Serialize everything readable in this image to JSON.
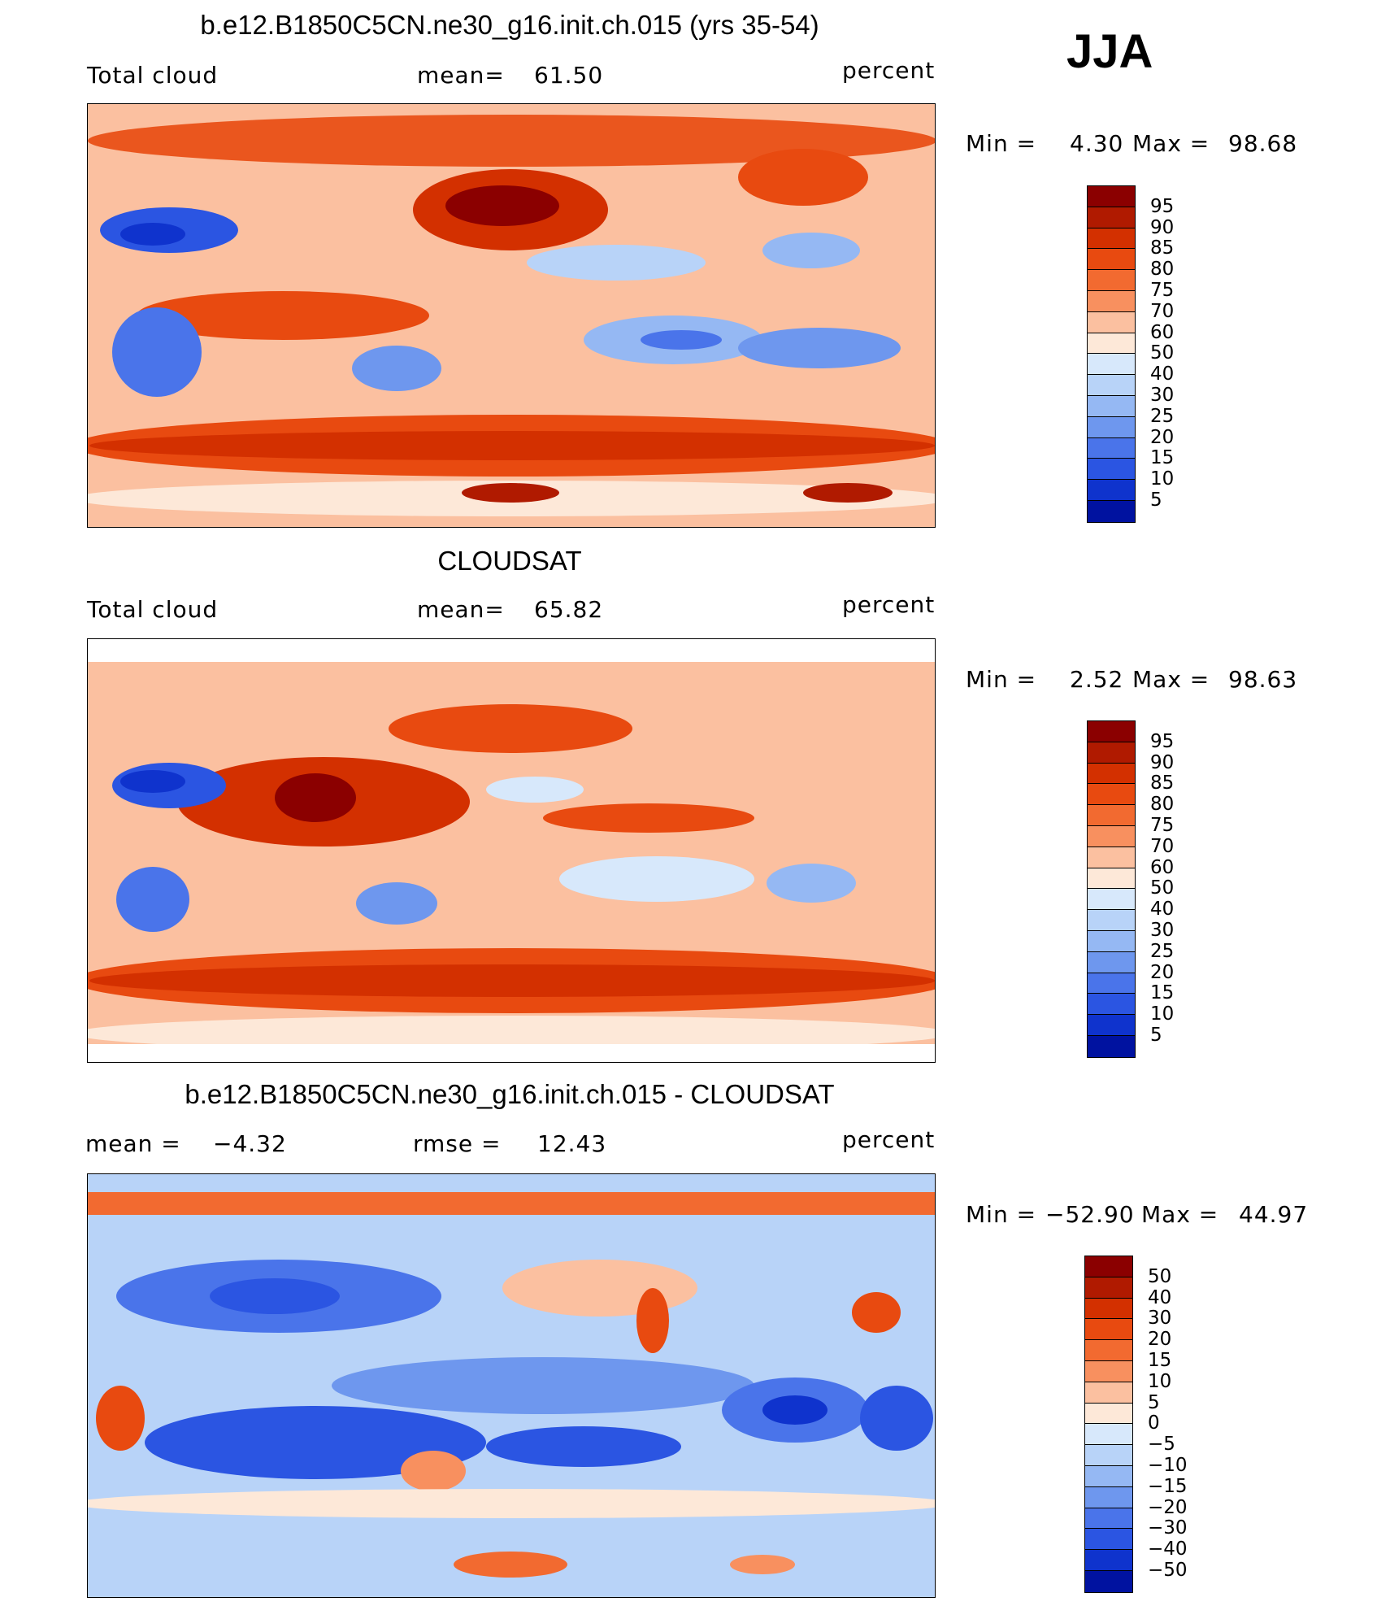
{
  "season": "JJA",
  "panels": [
    {
      "title": "b.e12.B1850C5CN.ne30_g16.init.ch.015 (yrs 35-54)",
      "left_label": "Total cloud",
      "center_label": "mean=",
      "center_value": "61.50",
      "units": "percent",
      "min_label": "Min =",
      "min_value": "4.30",
      "max_label": "Max =",
      "max_value": "98.68",
      "map_name": "model-total-cloud-map"
    },
    {
      "title": "CLOUDSAT",
      "left_label": "Total cloud",
      "center_label": "mean=",
      "center_value": "65.82",
      "units": "percent",
      "min_label": "Min =",
      "min_value": "2.52",
      "max_label": "Max =",
      "max_value": "98.63",
      "map_name": "cloudsat-total-cloud-map"
    },
    {
      "title": "b.e12.B1850C5CN.ne30_g16.init.ch.015 - CLOUDSAT",
      "left_label": "mean =",
      "left_value": "−4.32",
      "center_label": "rmse =",
      "center_value": "12.43",
      "units": "percent",
      "min_label": "Min =",
      "min_value": "−52.90",
      "max_label": "Max =",
      "max_value": "44.97",
      "map_name": "difference-map"
    }
  ],
  "colorbars": {
    "abs_colors": [
      "#8b0000",
      "#b01a00",
      "#d33000",
      "#e84a10",
      "#f26a30",
      "#f8905f",
      "#fbc0a0",
      "#fde8d8",
      "#d7e8fb",
      "#b8d3f8",
      "#95b8f3",
      "#6e97ee",
      "#4a74ea",
      "#2b55e2",
      "#0f33cd",
      "#0012a0"
    ],
    "abs_labels": [
      "95",
      "90",
      "85",
      "80",
      "75",
      "70",
      "60",
      "50",
      "40",
      "30",
      "25",
      "20",
      "15",
      "10",
      "5"
    ],
    "diff_colors": [
      "#8b0000",
      "#b01a00",
      "#d33000",
      "#e84a10",
      "#f26a30",
      "#f8905f",
      "#fbc0a0",
      "#fde8d8",
      "#d7e8fb",
      "#b8d3f8",
      "#95b8f3",
      "#6e97ee",
      "#4a74ea",
      "#2b55e2",
      "#0f33cd",
      "#0012a0"
    ],
    "diff_labels": [
      "50",
      "40",
      "30",
      "20",
      "15",
      "10",
      "5",
      "0",
      "−5",
      "−10",
      "−15",
      "−20",
      "−30",
      "−40",
      "−50"
    ]
  }
}
